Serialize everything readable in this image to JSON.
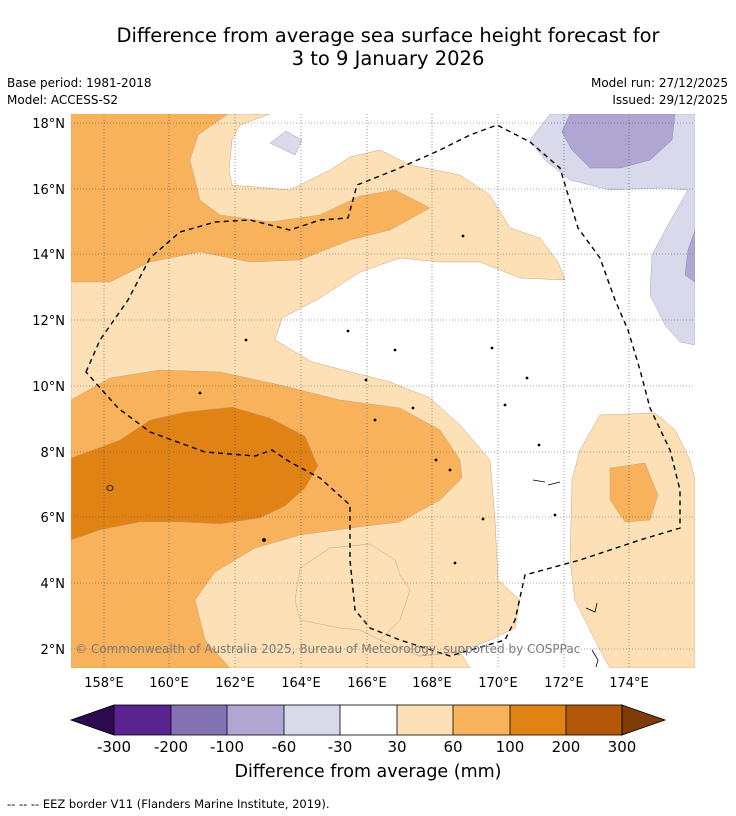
{
  "title": {
    "line1": "Difference from average sea surface height forecast for",
    "line2": "3 to 9 January 2026"
  },
  "meta": {
    "base_period": "Base period: 1981-2018",
    "model": "Model: ACCESS-S2",
    "model_run": "Model run: 27/12/2025",
    "issued": "Issued: 29/12/2025"
  },
  "map": {
    "lat_labels": [
      "18°N",
      "16°N",
      "14°N",
      "12°N",
      "10°N",
      "8°N",
      "6°N",
      "4°N",
      "2°N"
    ],
    "lon_labels": [
      "158°E",
      "160°E",
      "162°E",
      "164°E",
      "166°E",
      "168°E",
      "170°E",
      "172°E",
      "174°E"
    ],
    "copyright": "© Commonwealth of Australia 2025, Bureau of Meteorology, supported by COSPPac"
  },
  "colorbar": {
    "title": "Difference from average (mm)",
    "tick_labels": [
      "-300",
      "-200",
      "-100",
      "-60",
      "-30",
      "30",
      "60",
      "100",
      "200",
      "300"
    ],
    "colors": {
      "below": "#2d0a4e",
      "c1": "#5a2490",
      "c2": "#8473b3",
      "c3": "#afa6d2",
      "c4": "#d9d9ec",
      "c5": "#ffffff",
      "c6": "#fde0b6",
      "c7": "#f8b25c",
      "c8": "#e08214",
      "c9": "#b35806",
      "above": "#7f3b08"
    }
  },
  "footnote": "--  --  -- EEZ border V11 (Flanders Marine Institute, 2019)."
}
